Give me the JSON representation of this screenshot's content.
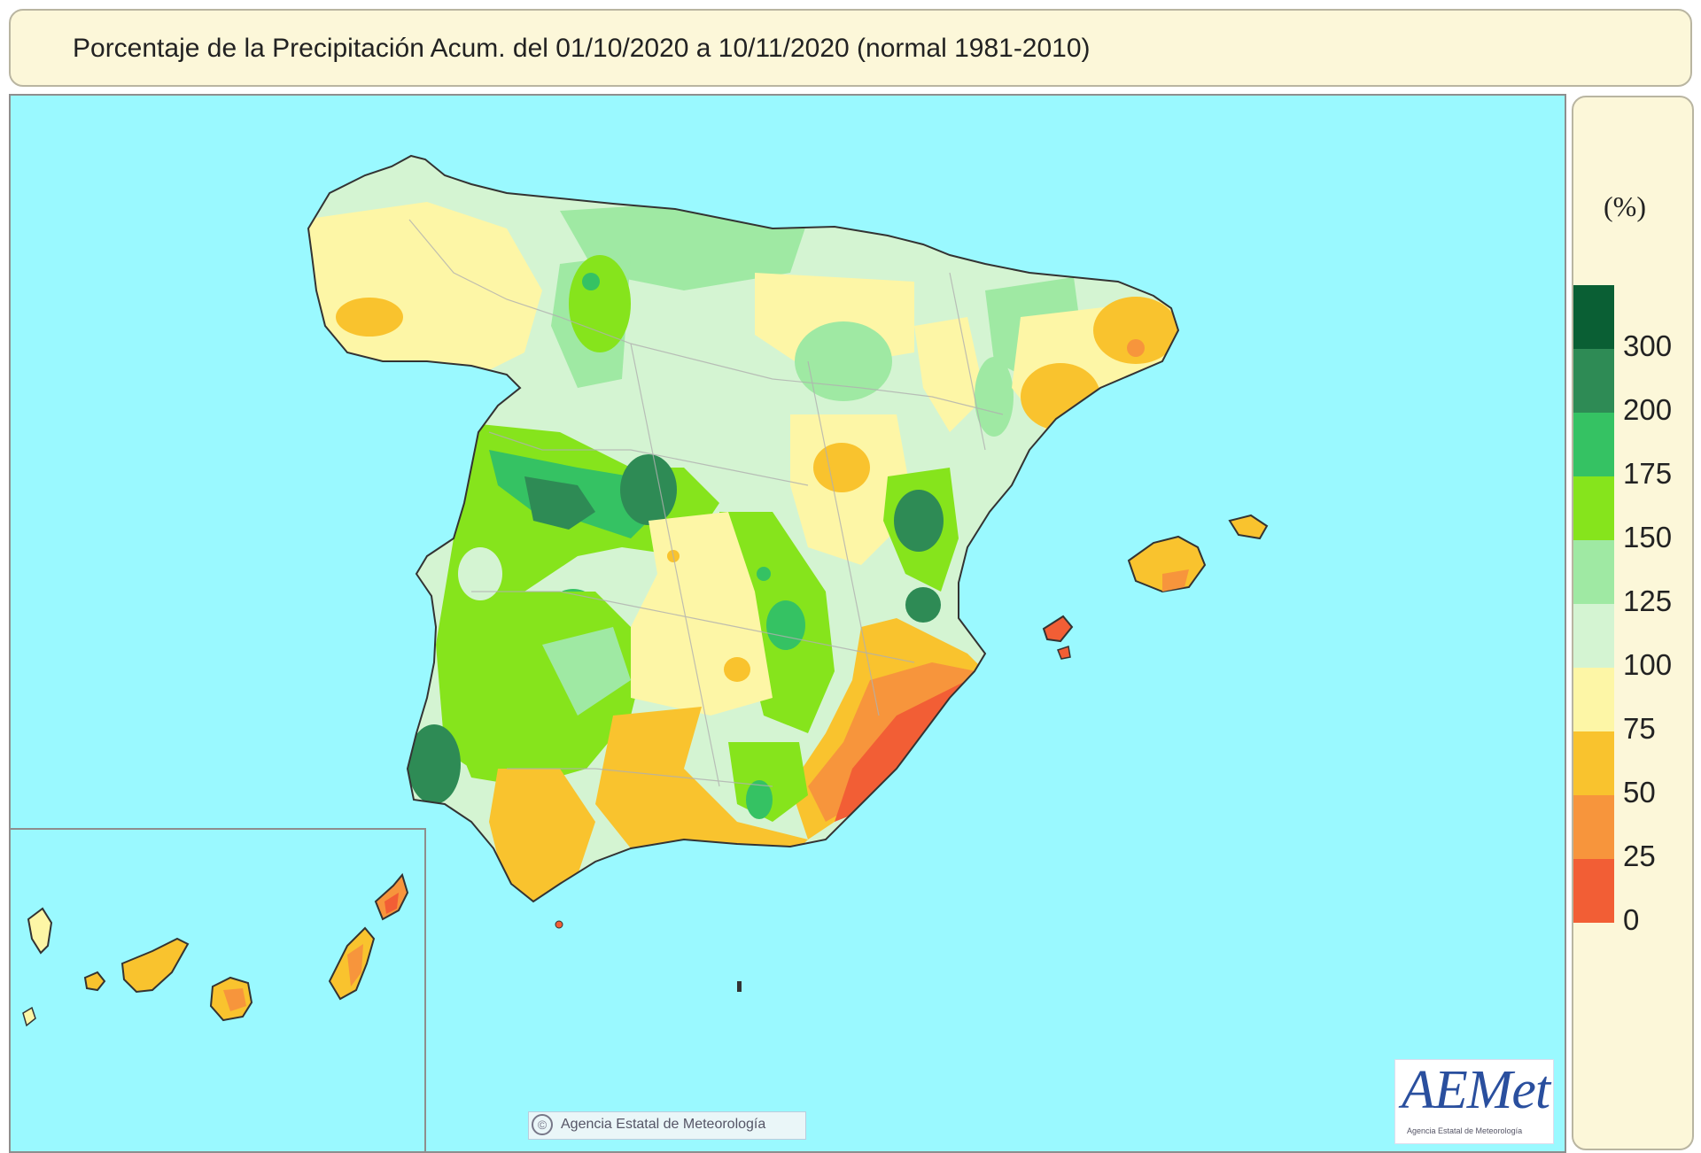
{
  "title": "Porcentaje de la Precipitación Acum. del 01/10/2020 a  10/11/2020  (normal 1981-2010)",
  "legend": {
    "unit": "(%)",
    "classes": [
      {
        "label": "300",
        "color": "#0a5f34"
      },
      {
        "label": "200",
        "color": "#2e8b55"
      },
      {
        "label": "175",
        "color": "#35c263"
      },
      {
        "label": "150",
        "color": "#86e41c"
      },
      {
        "label": "125",
        "color": "#9fe9a3"
      },
      {
        "label": "100",
        "color": "#d4f4d2"
      },
      {
        "label": "75",
        "color": "#fdf6a6"
      },
      {
        "label": "50",
        "color": "#f9c32e"
      },
      {
        "label": "25",
        "color": "#f7953c"
      },
      {
        "label": "0",
        "color": "#f25e35"
      }
    ]
  },
  "copyright": "Agencia Estatal de Meteorología",
  "logo": {
    "text": "AEMet",
    "subtitle": "Agencia Estatal de Meteorología"
  },
  "colors": {
    "sea": "#9af9ff",
    "title_bg": "#fcf7d9",
    "border": "#b9b5a1"
  }
}
